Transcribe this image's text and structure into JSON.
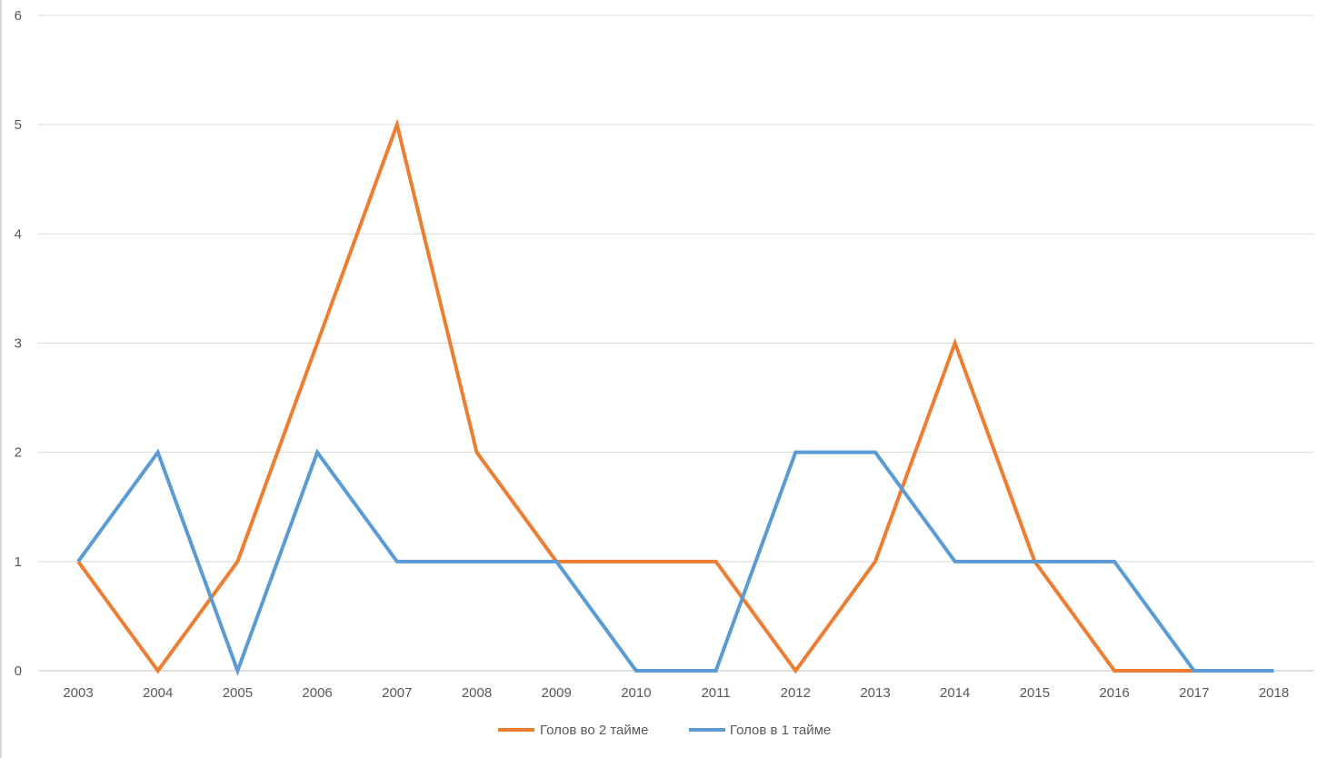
{
  "chart_data": {
    "type": "line",
    "x": [
      "2003",
      "2004",
      "2005",
      "2006",
      "2007",
      "2008",
      "2009",
      "2010",
      "2011",
      "2012",
      "2013",
      "2014",
      "2015",
      "2016",
      "2017",
      "2018"
    ],
    "series": [
      {
        "name": "Голов во 2 тайме",
        "color": "#ED7D31",
        "values": [
          1,
          0,
          1,
          3,
          5,
          2,
          1,
          1,
          1,
          0,
          1,
          3,
          1,
          0,
          0,
          0
        ]
      },
      {
        "name": "Голов в 1 тайме",
        "color": "#5B9BD5",
        "values": [
          1,
          2,
          0,
          2,
          1,
          1,
          1,
          0,
          0,
          2,
          2,
          1,
          1,
          1,
          0,
          0
        ]
      }
    ],
    "ylim": [
      0,
      6
    ],
    "yticks": [
      "0",
      "1",
      "2",
      "3",
      "4",
      "5",
      "6"
    ],
    "grid": true,
    "legend": "bottom"
  }
}
